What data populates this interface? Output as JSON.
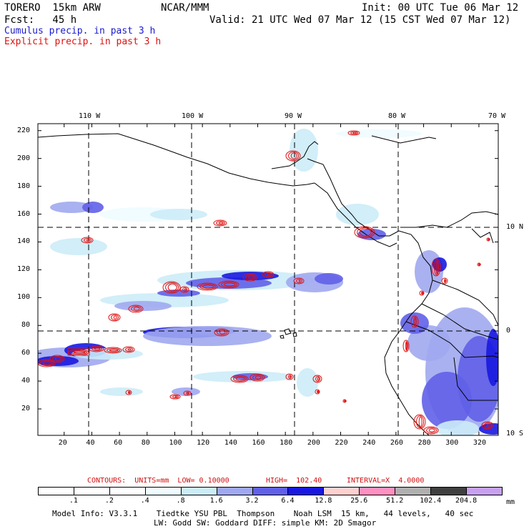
{
  "header": {
    "model": "TORERO  15km ARW",
    "org": "NCAR/MMM",
    "init": "Init: 00 UTC Tue 06 Mar 12",
    "fcst": "Fcst:   45 h",
    "valid": "Valid: 21 UTC Wed 07 Mar 12 (15 CST Wed 07 Mar 12)"
  },
  "legend": {
    "cumulus": {
      "text": "Cumulus precip. in past 3 h",
      "color": "#1a1ad0"
    },
    "explicit": {
      "text": "Explicit precip. in past 3 h",
      "color": "#e01010"
    }
  },
  "map": {
    "longitude_labels": [
      "110 W",
      "100 W",
      "90 W",
      "80 W",
      "70 W"
    ],
    "latitude_labels": [
      "10 N",
      "0",
      "10 S"
    ],
    "x_ticks": [
      "20",
      "40",
      "60",
      "80",
      "100",
      "120",
      "140",
      "160",
      "180",
      "200",
      "220",
      "240",
      "260",
      "280",
      "300",
      "320"
    ],
    "y_ticks": [
      "20",
      "40",
      "60",
      "80",
      "100",
      "120",
      "140",
      "160",
      "180",
      "200",
      "220"
    ],
    "x_range": [
      1,
      334
    ],
    "y_range": [
      1,
      225
    ]
  },
  "contours": {
    "label": "CONTOURS:  UNITS=mm  LOW= 0.10000",
    "high": "HIGH=  102.40",
    "interval": "INTERVAL=X  4.0000",
    "color": "#d01010"
  },
  "colorbar": {
    "labels": [
      ".1",
      ".2",
      ".4",
      ".8",
      "1.6",
      "3.2",
      "6.4",
      "12.8",
      "25.6",
      "51.2",
      "102.4",
      "204.8"
    ],
    "colors": [
      "#ffffff",
      "#ffffff",
      "#ffffff",
      "#eefcff",
      "#ccecf8",
      "#a0a8f0",
      "#6060e8",
      "#1818e0",
      "#ffd0d0",
      "#ff90c0",
      "#b0b0b0",
      "#404040",
      "#c8a0f0"
    ],
    "unit": "mm"
  },
  "footer": {
    "line1": "Model Info: V3.3.1    Tiedtke YSU PBL  Thompson    Noah LSM  15 km,   44 levels,   40 sec",
    "line2": "LW: Godd SW: Goddard DIFF: simple KM: 2D Smagor"
  }
}
